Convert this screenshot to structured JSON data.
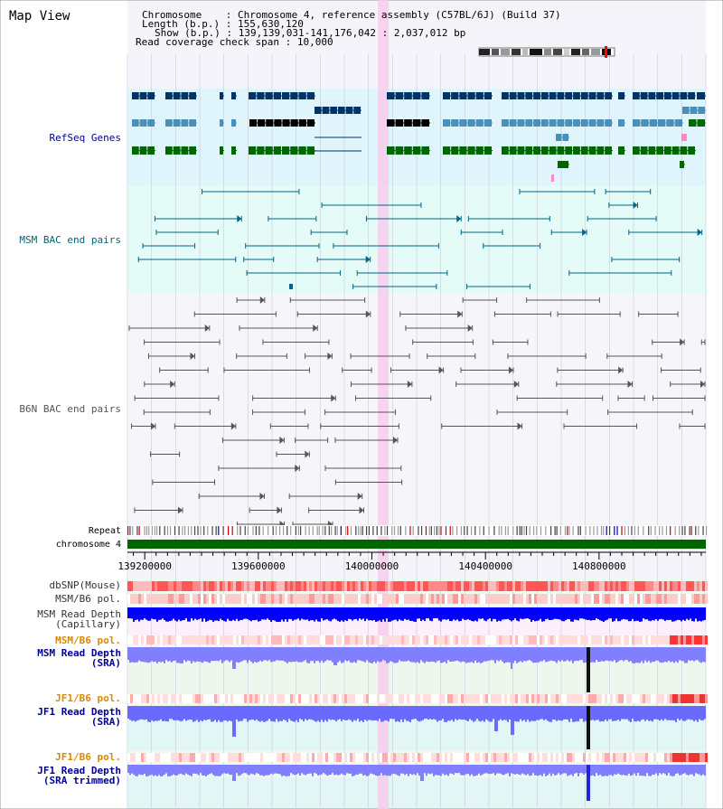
{
  "view_title": "Map View",
  "header": {
    "chromosome_label": "Chromosome",
    "chromosome_value": "Chromosome 4, reference assembly (C57BL/6J) (Build 37)",
    "length_label": "Length (b.p.)",
    "length_value": "155,630,120",
    "show_label": "Show (b.p.)",
    "show_value": "139,139,031-141,176,042 : 2,037,012 bp",
    "coverage_label": "Read coverage check span",
    "coverage_value": "10,000"
  },
  "region": {
    "start": 139139031,
    "end": 141176042
  },
  "tracks": {
    "refseq": "RefSeq Genes",
    "msm_bac": "MSM BAC end pairs",
    "b6n_bac": "B6N BAC end pairs",
    "repeat": "Repeat",
    "chromosome": "chromosome 4",
    "dbsnp": "dbSNP(Mouse)",
    "msm_b6_pol_1": "MSM/B6 pol.",
    "msm_depth_cap_1": "MSM Read Depth",
    "msm_depth_cap_2": "(Capillary)",
    "msm_b6_pol_2": "MSM/B6 pol.",
    "msm_depth_sra_1": "MSM Read Depth",
    "msm_depth_sra_2": "(SRA)",
    "jf1_b6_pol_1": "JF1/B6 pol.",
    "jf1_depth_sra_1": "JF1 Read Depth",
    "jf1_depth_sra_2": "(SRA)",
    "jf1_b6_pol_2": "JF1/B6 pol.",
    "jf1_depth_trim_1": "JF1 Read Depth",
    "jf1_depth_trim_2": "(SRA trimmed)"
  },
  "axis_ticks": [
    "139200000",
    "139600000",
    "140000000",
    "140400000",
    "140800000"
  ],
  "highlight": "140040000",
  "colors": {
    "refseq_bg": "#dff4fb",
    "msm_bg": "#e4fbf7",
    "gene_dark": "#003366",
    "gene_mid": "#4a8fb8",
    "gene_green": "#006600",
    "msm_line": "#006688",
    "b6n_line": "#555555",
    "highlight": "#f7ccec",
    "chrom_green": "#006600",
    "label_blue": "#000099",
    "label_teal": "#006677",
    "label_gray": "#555555",
    "label_orange": "#dd8800",
    "snp_red": "#ff4444",
    "depth_blue": "#0000ff",
    "depth_light": "#8080ff"
  }
}
